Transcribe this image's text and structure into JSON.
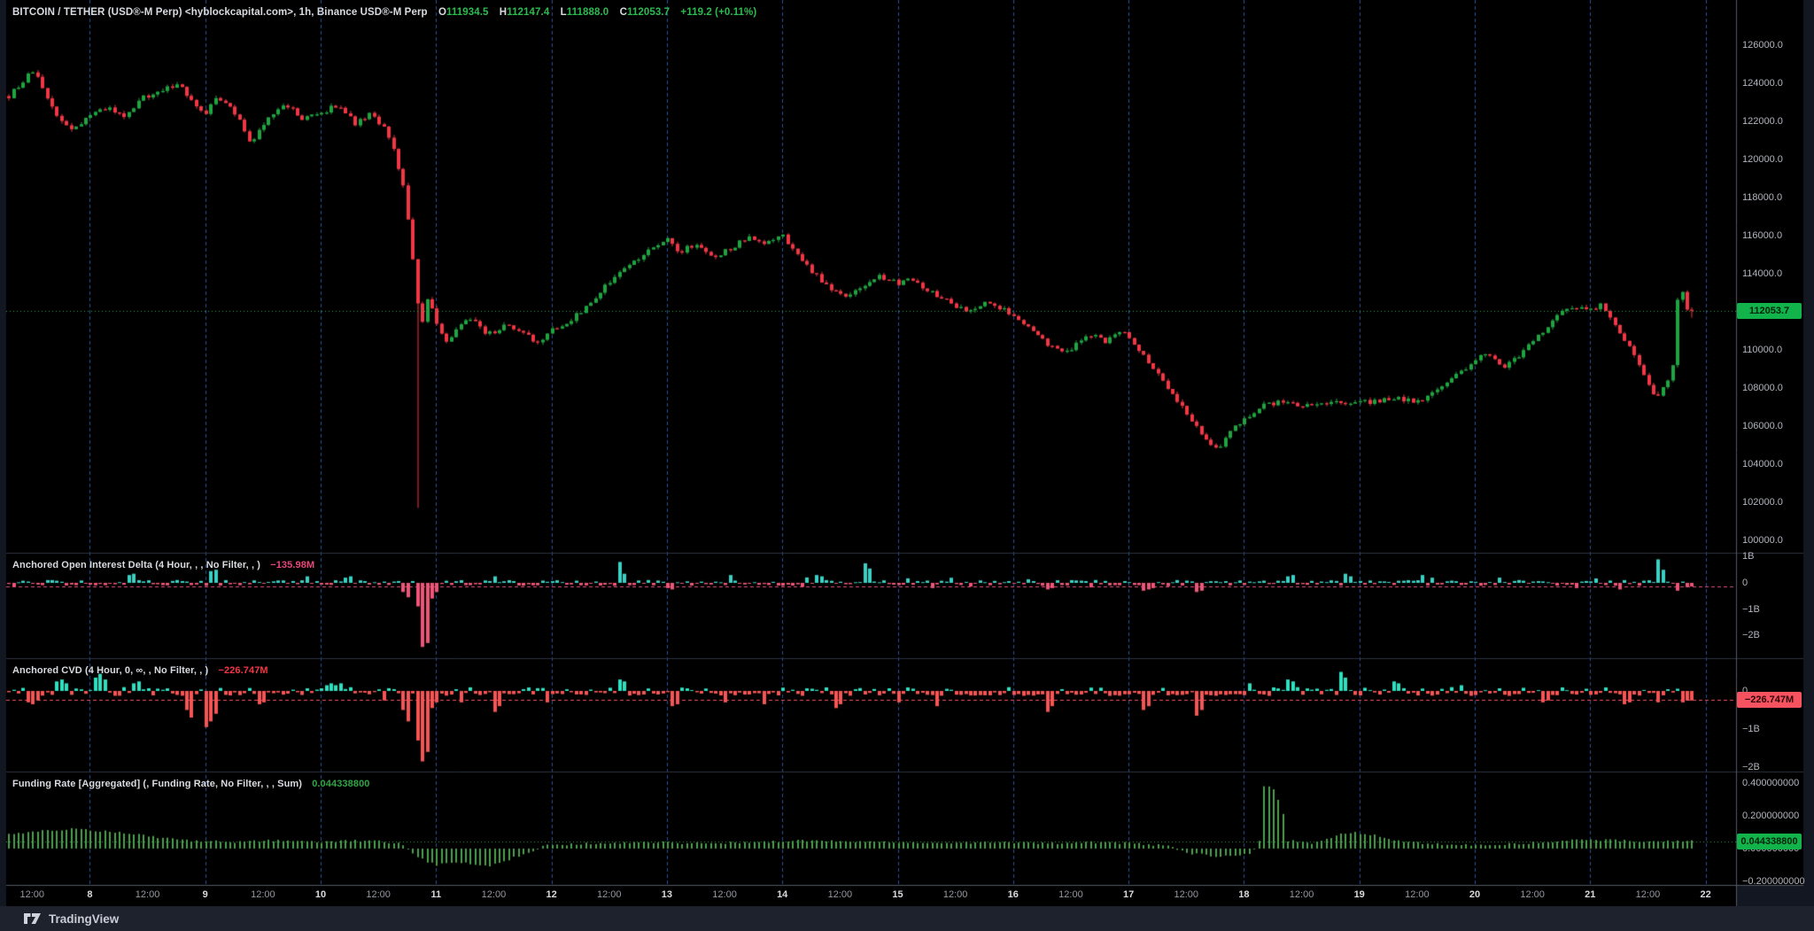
{
  "header": {
    "symbol_title": "BITCOIN / TETHER (USD®-M Perp) <hyblockcapital.com>, 1h, Binance USD®-M Perp",
    "ohlc": [
      {
        "label": "O",
        "value": "111934.5"
      },
      {
        "label": "H",
        "value": "112147.4"
      },
      {
        "label": "L",
        "value": "111888.0"
      },
      {
        "label": "C",
        "value": "112053.7"
      }
    ],
    "change": "+119.2 (+0.11%)"
  },
  "panes": {
    "oi": {
      "label": "Anchored Open Interest Delta (4 Hour, , , No Filter, , )",
      "value": "−135.98M"
    },
    "cvd": {
      "label": "Anchored CVD (4 Hour, 0, ∞, , No Filter, , )",
      "value": "−226.747M"
    },
    "funding": {
      "label": "Funding Rate [Aggregated] (, Funding Rate, No Filter, , , Sum)",
      "value": "0.044338800"
    }
  },
  "price_scale": {
    "last_price_badge": "112053.7",
    "cvd_badge": "−226.747M",
    "funding_badge": "0.044338800"
  },
  "time_axis": {
    "half_day_label": "12:00",
    "day_labels": [
      "8",
      "9",
      "10",
      "11",
      "12",
      "13",
      "14",
      "15",
      "16",
      "17",
      "18",
      "19",
      "20",
      "21",
      "22"
    ]
  },
  "footer": {
    "brand": "TradingView"
  },
  "colors": {
    "chart_bg": "#000000",
    "frame": "#131722",
    "footer_bg": "#1e222d",
    "up": "#1ea440",
    "down": "#f23645",
    "oi_pos": "#3bd0c4",
    "oi_neg": "#ee5678",
    "cvd_pos": "#2de0c0",
    "cvd_neg": "#f65555",
    "fr_bar": "#4f9e4f",
    "grid": "#2b4f9e",
    "separator": "#2e3342",
    "axis_border": "#555a64",
    "price_line": "#2bac48",
    "oi_line": "#e0517c",
    "cvd_line": "#f7525f",
    "fr_line": "#2bac48"
  },
  "chart_data": [
    {
      "type": "candlestick",
      "name": "BTCUSDT perp 1h candles",
      "x_unit": "day of month (October), day ticks 8-22, grid at midnight",
      "x_range": [
        7.3,
        22
      ],
      "ylim": [
        99350,
        128372
      ],
      "y_ticks": [
        {
          "v": 126000,
          "label": "126000.0"
        },
        {
          "v": 124000,
          "label": "124000.0"
        },
        {
          "v": 122000,
          "label": "122000.0"
        },
        {
          "v": 120000,
          "label": "120000.0"
        },
        {
          "v": 118000,
          "label": "118000.0"
        },
        {
          "v": 116000,
          "label": "116000.0"
        },
        {
          "v": 114000,
          "label": "114000.0"
        },
        {
          "v": 112000,
          "label": ""
        },
        {
          "v": 110000,
          "label": "110000.0"
        },
        {
          "v": 108000,
          "label": "108000.0"
        },
        {
          "v": 106000,
          "label": "106000.0"
        },
        {
          "v": 104000,
          "label": "104000.0"
        },
        {
          "v": 102000,
          "label": "102000.0"
        },
        {
          "v": 100000,
          "label": "100000.0"
        }
      ],
      "last_close": 112053.7,
      "crash_wick": {
        "day": 10.83,
        "low": 101700
      },
      "keyframes": [
        [
          7.28,
          123200
        ],
        [
          7.36,
          123700
        ],
        [
          7.45,
          124300
        ],
        [
          7.52,
          124650
        ],
        [
          7.6,
          123500
        ],
        [
          7.72,
          122300
        ],
        [
          7.85,
          121500
        ],
        [
          8.0,
          122300
        ],
        [
          8.15,
          122700
        ],
        [
          8.3,
          122200
        ],
        [
          8.45,
          123200
        ],
        [
          8.6,
          123500
        ],
        [
          8.75,
          124000
        ],
        [
          8.9,
          123100
        ],
        [
          9.0,
          122300
        ],
        [
          9.1,
          123300
        ],
        [
          9.25,
          122500
        ],
        [
          9.4,
          120900
        ],
        [
          9.55,
          122300
        ],
        [
          9.7,
          122900
        ],
        [
          9.85,
          122100
        ],
        [
          10.0,
          122400
        ],
        [
          10.15,
          122900
        ],
        [
          10.3,
          121900
        ],
        [
          10.45,
          122400
        ],
        [
          10.55,
          121600
        ],
        [
          10.65,
          120200
        ],
        [
          10.72,
          118500
        ],
        [
          10.78,
          116000
        ],
        [
          10.83,
          112900
        ],
        [
          10.88,
          111400
        ],
        [
          10.92,
          112800
        ],
        [
          11.0,
          111600
        ],
        [
          11.08,
          110300
        ],
        [
          11.2,
          111200
        ],
        [
          11.3,
          111700
        ],
        [
          11.45,
          110800
        ],
        [
          11.6,
          111300
        ],
        [
          11.75,
          110900
        ],
        [
          11.9,
          110300
        ],
        [
          12.0,
          111000
        ],
        [
          12.15,
          111500
        ],
        [
          12.3,
          112200
        ],
        [
          12.45,
          113200
        ],
        [
          12.6,
          114200
        ],
        [
          12.75,
          114800
        ],
        [
          12.9,
          115400
        ],
        [
          13.0,
          115800
        ],
        [
          13.1,
          115100
        ],
        [
          13.25,
          115600
        ],
        [
          13.4,
          114800
        ],
        [
          13.55,
          115300
        ],
        [
          13.7,
          115900
        ],
        [
          13.85,
          115500
        ],
        [
          14.0,
          116100
        ],
        [
          14.1,
          115200
        ],
        [
          14.25,
          114200
        ],
        [
          14.4,
          113300
        ],
        [
          14.55,
          112700
        ],
        [
          14.7,
          113400
        ],
        [
          14.85,
          113900
        ],
        [
          15.0,
          113500
        ],
        [
          15.1,
          113900
        ],
        [
          15.25,
          113200
        ],
        [
          15.45,
          112500
        ],
        [
          15.6,
          112000
        ],
        [
          15.75,
          112500
        ],
        [
          15.9,
          112200
        ],
        [
          16.05,
          111700
        ],
        [
          16.2,
          110800
        ],
        [
          16.35,
          110100
        ],
        [
          16.5,
          110000
        ],
        [
          16.65,
          110900
        ],
        [
          16.8,
          110400
        ],
        [
          16.95,
          111000
        ],
        [
          17.05,
          110400
        ],
        [
          17.2,
          109200
        ],
        [
          17.35,
          108000
        ],
        [
          17.5,
          106800
        ],
        [
          17.65,
          105500
        ],
        [
          17.78,
          104700
        ],
        [
          17.9,
          105800
        ],
        [
          18.0,
          106400
        ],
        [
          18.15,
          107000
        ],
        [
          18.3,
          107300
        ],
        [
          18.5,
          107000
        ],
        [
          18.7,
          107300
        ],
        [
          18.9,
          107100
        ],
        [
          19.1,
          107300
        ],
        [
          19.3,
          107500
        ],
        [
          19.5,
          107300
        ],
        [
          19.7,
          107900
        ],
        [
          19.85,
          108700
        ],
        [
          20.0,
          109400
        ],
        [
          20.1,
          109800
        ],
        [
          20.25,
          109100
        ],
        [
          20.4,
          109800
        ],
        [
          20.55,
          110700
        ],
        [
          20.7,
          111700
        ],
        [
          20.85,
          112300
        ],
        [
          21.0,
          112000
        ],
        [
          21.08,
          112400
        ],
        [
          21.2,
          111600
        ],
        [
          21.33,
          110200
        ],
        [
          21.45,
          108900
        ],
        [
          21.52,
          107900
        ],
        [
          21.58,
          107600
        ],
        [
          21.65,
          108200
        ],
        [
          21.71,
          108500
        ],
        [
          21.75,
          112300
        ],
        [
          21.79,
          113400
        ],
        [
          21.83,
          112300
        ],
        [
          21.87,
          111800
        ],
        [
          21.92,
          112053.7
        ]
      ]
    },
    {
      "type": "bar",
      "name": "Anchored Open Interest Delta",
      "unit": "B (billions)",
      "ylim": [
        -2.88,
        1.152
      ],
      "y_ticks": [
        {
          "v": 1,
          "label": "1B"
        },
        {
          "v": 0,
          "label": "0"
        },
        {
          "v": -1,
          "label": "−1B"
        },
        {
          "v": -2,
          "label": "−2B"
        }
      ],
      "last_value": -0.136,
      "base_noise": 0.09,
      "events": [
        [
          8.35,
          0.3,
          0.35
        ],
        [
          9.05,
          0.45,
          0.5
        ],
        [
          9.9,
          0.25
        ],
        [
          10.2,
          0.2,
          0.25
        ],
        [
          10.7,
          -0.35,
          -0.55
        ],
        [
          10.83,
          -0.9,
          -2.45,
          -2.3
        ],
        [
          10.96,
          -0.6,
          -0.35
        ],
        [
          11.5,
          0.25
        ],
        [
          12.6,
          0.8,
          0.35
        ],
        [
          13.0,
          -0.2,
          -0.25
        ],
        [
          13.55,
          0.3
        ],
        [
          14.3,
          0.3,
          0.25
        ],
        [
          14.72,
          0.75,
          0.55
        ],
        [
          15.3,
          -0.2
        ],
        [
          16.3,
          -0.25,
          -0.2
        ],
        [
          17.15,
          -0.3,
          -0.25,
          -0.2
        ],
        [
          17.6,
          -0.35,
          -0.3
        ],
        [
          18.4,
          0.25,
          0.3
        ],
        [
          18.9,
          0.35,
          0.25
        ],
        [
          19.55,
          0.3
        ],
        [
          20.2,
          0.2
        ],
        [
          20.9,
          -0.2
        ],
        [
          21.25,
          -0.25
        ],
        [
          21.58,
          0.9,
          0.5
        ],
        [
          21.75,
          -0.3
        ],
        [
          21.88,
          -0.136
        ]
      ]
    },
    {
      "type": "bar",
      "name": "Anchored CVD",
      "unit": "B (billions)",
      "ylim": [
        -2.116,
        0.86
      ],
      "y_ticks": [
        {
          "v": 0,
          "label": "0"
        },
        {
          "v": -1,
          "label": "−1B"
        },
        {
          "v": -2,
          "label": "−2B"
        }
      ],
      "last_value": -0.226747,
      "base_noise": 0.1,
      "events": [
        [
          7.45,
          -0.3,
          -0.35,
          -0.25
        ],
        [
          7.7,
          0.25,
          0.3,
          0.2
        ],
        [
          8.05,
          0.35,
          0.45,
          0.3
        ],
        [
          8.4,
          0.2,
          0.25
        ],
        [
          8.85,
          -0.5,
          -0.7
        ],
        [
          9.0,
          -0.95,
          -0.8,
          -0.6
        ],
        [
          9.45,
          -0.35,
          -0.3
        ],
        [
          10.05,
          0.15,
          0.2,
          0.15,
          0.2
        ],
        [
          10.55,
          -0.25
        ],
        [
          10.7,
          -0.5,
          -0.8
        ],
        [
          10.83,
          -1.3,
          -1.85,
          -1.6
        ],
        [
          10.96,
          -0.45,
          -0.3
        ],
        [
          11.2,
          -0.3
        ],
        [
          11.5,
          -0.55,
          -0.4
        ],
        [
          11.95,
          -0.3
        ],
        [
          12.6,
          0.3,
          0.25
        ],
        [
          13.05,
          -0.4,
          -0.35
        ],
        [
          13.5,
          -0.3
        ],
        [
          13.85,
          -0.35
        ],
        [
          14.45,
          -0.45,
          -0.35
        ],
        [
          15.0,
          -0.3
        ],
        [
          15.35,
          -0.4
        ],
        [
          16.3,
          -0.55,
          -0.4
        ],
        [
          17.15,
          -0.5,
          -0.4
        ],
        [
          17.6,
          -0.65,
          -0.5
        ],
        [
          18.05,
          0.2
        ],
        [
          18.4,
          0.3,
          0.25
        ],
        [
          18.85,
          0.5,
          0.35
        ],
        [
          19.3,
          0.25,
          0.2
        ],
        [
          19.9,
          0.15
        ],
        [
          20.6,
          -0.3,
          -0.25
        ],
        [
          21.3,
          -0.35,
          -0.3
        ],
        [
          21.6,
          -0.3
        ],
        [
          21.8,
          -0.3,
          -0.25
        ],
        [
          21.88,
          -0.25,
          -0.227
        ]
      ]
    },
    {
      "type": "bar",
      "name": "Funding Rate [Aggregated] Sum",
      "ylim": [
        -0.222,
        0.47
      ],
      "y_ticks": [
        {
          "v": 0.4,
          "label": "0.400000000"
        },
        {
          "v": 0.2,
          "label": "0.200000000"
        },
        {
          "v": 0,
          "label": "0.000000000"
        },
        {
          "v": -0.2,
          "label": "−0.200000000"
        }
      ],
      "last_value": 0.0443388,
      "keyframes": [
        [
          7.28,
          0.09
        ],
        [
          7.6,
          0.11
        ],
        [
          7.9,
          0.12
        ],
        [
          8.2,
          0.1
        ],
        [
          8.5,
          0.08
        ],
        [
          8.8,
          0.05
        ],
        [
          9.2,
          0.04
        ],
        [
          9.6,
          0.05
        ],
        [
          10.0,
          0.04
        ],
        [
          10.4,
          0.05
        ],
        [
          10.7,
          0.03
        ],
        [
          10.82,
          -0.05
        ],
        [
          11.0,
          -0.1
        ],
        [
          11.2,
          -0.08
        ],
        [
          11.45,
          -0.11
        ],
        [
          11.7,
          -0.05
        ],
        [
          11.95,
          0.02
        ],
        [
          12.3,
          0.03
        ],
        [
          12.8,
          0.04
        ],
        [
          13.3,
          0.03
        ],
        [
          13.8,
          0.04
        ],
        [
          14.3,
          0.05
        ],
        [
          14.8,
          0.04
        ],
        [
          15.3,
          0.03
        ],
        [
          15.8,
          0.04
        ],
        [
          16.3,
          0.03
        ],
        [
          16.8,
          0.04
        ],
        [
          17.3,
          0.02
        ],
        [
          17.55,
          -0.03
        ],
        [
          17.8,
          -0.05
        ],
        [
          18.0,
          -0.04
        ],
        [
          18.08,
          -0.02
        ],
        [
          18.13,
          0.02
        ],
        [
          18.17,
          0.38
        ],
        [
          18.21,
          0.38
        ],
        [
          18.25,
          0.375
        ],
        [
          18.29,
          0.31
        ],
        [
          18.33,
          0.26
        ],
        [
          18.38,
          0.05
        ],
        [
          18.6,
          0.03
        ],
        [
          18.8,
          0.08
        ],
        [
          18.9,
          0.1
        ],
        [
          19.0,
          0.095
        ],
        [
          19.15,
          0.08
        ],
        [
          19.3,
          0.05
        ],
        [
          19.6,
          0.03
        ],
        [
          20.0,
          0.02
        ],
        [
          20.4,
          0.03
        ],
        [
          20.8,
          0.05
        ],
        [
          21.2,
          0.05
        ],
        [
          21.5,
          0.04
        ],
        [
          21.8,
          0.05
        ],
        [
          21.92,
          0.0443388
        ]
      ]
    }
  ]
}
